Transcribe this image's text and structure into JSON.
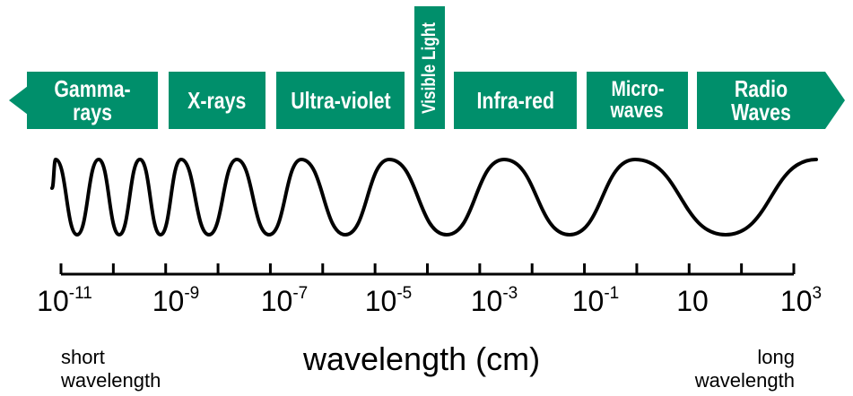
{
  "colors": {
    "band": "#008f6b",
    "band_text": "#ffffff",
    "line": "#000000"
  },
  "bands": [
    {
      "label": "Gamma-rays"
    },
    {
      "label": "X-rays"
    },
    {
      "label": "Ultra-violet"
    },
    {
      "label": "Visible Light"
    },
    {
      "label": "Infra-red"
    },
    {
      "label_line1": "Micro-",
      "label_line2": "waves"
    },
    {
      "label": "Radio Waves"
    }
  ],
  "axis": {
    "ticks": [
      {
        "base": "10",
        "exp": "-11"
      },
      {
        "base": "10",
        "exp": "-9"
      },
      {
        "base": "10",
        "exp": "-7"
      },
      {
        "base": "10",
        "exp": "-5"
      },
      {
        "base": "10",
        "exp": "-3"
      },
      {
        "base": "10",
        "exp": "-1"
      },
      {
        "base": "10",
        "exp": ""
      },
      {
        "base": "10",
        "exp": "3"
      }
    ],
    "title": "wavelength (cm)",
    "left_end": [
      "short",
      "wavelength"
    ],
    "right_end": [
      "long",
      "wavelength"
    ]
  }
}
